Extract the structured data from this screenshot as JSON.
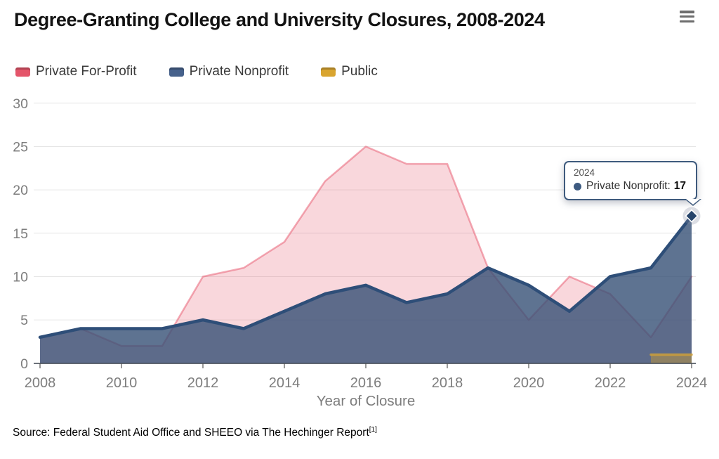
{
  "header": {
    "title": "Degree-Granting College and University Closures, 2008-2024",
    "menu_icon": "hamburger-icon"
  },
  "legend": [
    {
      "label": "Private For-Profit",
      "color": "#e4556a"
    },
    {
      "label": "Private Nonprofit",
      "color": "#46618b"
    },
    {
      "label": "Public",
      "color": "#d9a530"
    }
  ],
  "chart_data": {
    "type": "area",
    "x": [
      2008,
      2009,
      2010,
      2011,
      2012,
      2013,
      2014,
      2015,
      2016,
      2017,
      2018,
      2019,
      2020,
      2021,
      2022,
      2023,
      2024
    ],
    "series": [
      {
        "name": "Private For-Profit",
        "color": "#e8566b",
        "values": [
          3,
          4,
          2,
          2,
          10,
          11,
          14,
          21,
          25,
          23,
          23,
          11,
          5,
          10,
          8,
          3,
          10
        ]
      },
      {
        "name": "Private Nonprofit",
        "color": "#2e4e78",
        "values": [
          3,
          4,
          4,
          4,
          5,
          4,
          6,
          8,
          9,
          7,
          8,
          11,
          9,
          6,
          10,
          11,
          17
        ]
      },
      {
        "name": "Public",
        "color": "#d4a02c",
        "values": [
          null,
          null,
          null,
          null,
          null,
          null,
          null,
          null,
          null,
          null,
          null,
          null,
          null,
          null,
          null,
          1,
          1
        ]
      }
    ],
    "title": "Degree-Granting College and University Closures, 2008-2024",
    "xlabel": "Year of Closure",
    "ylabel": "",
    "ylim": [
      0,
      30
    ],
    "ytick_step": 5,
    "xtick_years": [
      2008,
      2010,
      2012,
      2014,
      2016,
      2018,
      2020,
      2022,
      2024
    ],
    "grid": true,
    "legend_position": "top-left"
  },
  "tooltip": {
    "year": "2024",
    "label": "Private Nonprofit:",
    "value": "17"
  },
  "axis": {
    "y_labels": [
      "0",
      "5",
      "10",
      "15",
      "20",
      "25",
      "30"
    ],
    "x_labels": [
      "2008",
      "2010",
      "2012",
      "2014",
      "2016",
      "2018",
      "2020",
      "2022",
      "2024"
    ]
  },
  "source": {
    "text": "Source: Federal Student Aid Office and SHEEO via The Hechinger Report",
    "superscript": "[1]"
  }
}
